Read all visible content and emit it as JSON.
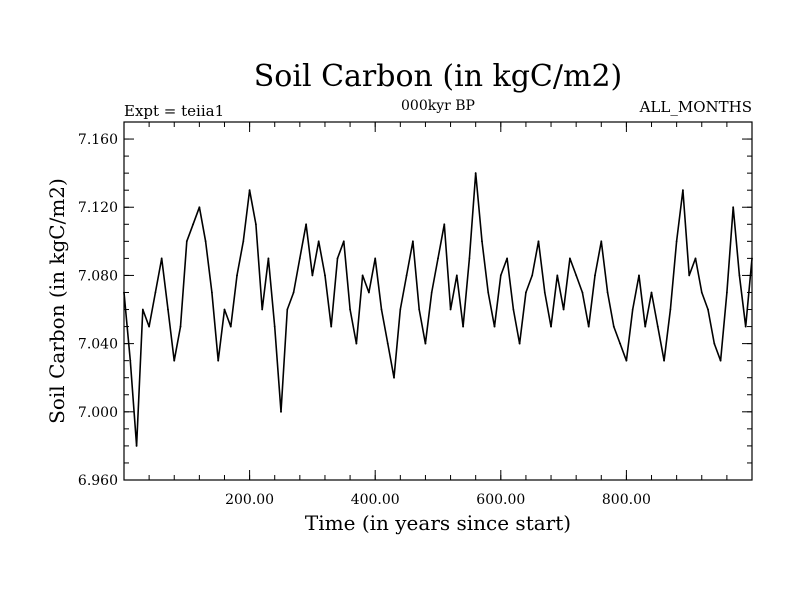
{
  "chart_data": {
    "type": "line",
    "title": "Soil Carbon (in kgC/m2)",
    "subtitle": "000kyr BP",
    "left_note": "Expt = teiia1",
    "right_note": "ALL_MONTHS",
    "xlabel": "Time (in years since start)",
    "ylabel": "Soil Carbon (in kgC/m2)",
    "xlim": [
      0,
      1000
    ],
    "ylim": [
      6.96,
      7.17
    ],
    "x_ticks": [
      200,
      400,
      600,
      800
    ],
    "x_tick_labels": [
      "200.00",
      "400.00",
      "600.00",
      "800.00"
    ],
    "y_ticks": [
      6.96,
      7.0,
      7.04,
      7.08,
      7.12,
      7.16
    ],
    "y_tick_labels": [
      "6.960",
      "7.000",
      "7.040",
      "7.080",
      "7.120",
      "7.160"
    ],
    "grid": false,
    "series": [
      {
        "x": [
          0,
          10,
          20,
          30,
          40,
          50,
          60,
          70,
          80,
          90,
          100,
          110,
          120,
          130,
          140,
          150,
          160,
          170,
          180,
          190,
          200,
          210,
          220,
          230,
          240,
          250,
          260,
          270,
          280,
          290,
          300,
          310,
          320,
          330,
          340,
          350,
          360,
          370,
          380,
          390,
          400,
          410,
          420,
          430,
          440,
          450,
          460,
          470,
          480,
          490,
          500,
          510,
          520,
          530,
          540,
          550,
          560,
          570,
          580,
          590,
          600,
          610,
          620,
          630,
          640,
          650,
          660,
          670,
          680,
          690,
          700,
          710,
          720,
          730,
          740,
          750,
          760,
          770,
          780,
          790,
          800,
          810,
          820,
          830,
          840,
          850,
          860,
          870,
          880,
          890,
          900,
          910,
          920,
          930,
          940,
          950,
          960,
          970,
          980,
          990,
          1000
        ],
        "y": [
          7.07,
          7.03,
          6.98,
          7.06,
          7.05,
          7.07,
          7.09,
          7.06,
          7.03,
          7.05,
          7.1,
          7.11,
          7.12,
          7.1,
          7.07,
          7.03,
          7.06,
          7.05,
          7.08,
          7.1,
          7.13,
          7.11,
          7.06,
          7.09,
          7.05,
          7.0,
          7.06,
          7.07,
          7.09,
          7.11,
          7.08,
          7.1,
          7.08,
          7.05,
          7.09,
          7.1,
          7.06,
          7.04,
          7.08,
          7.07,
          7.09,
          7.06,
          7.04,
          7.02,
          7.06,
          7.08,
          7.1,
          7.06,
          7.04,
          7.07,
          7.09,
          7.11,
          7.06,
          7.08,
          7.05,
          7.09,
          7.14,
          7.1,
          7.07,
          7.05,
          7.08,
          7.09,
          7.06,
          7.04,
          7.07,
          7.08,
          7.1,
          7.07,
          7.05,
          7.08,
          7.06,
          7.09,
          7.08,
          7.07,
          7.05,
          7.08,
          7.1,
          7.07,
          7.05,
          7.04,
          7.03,
          7.06,
          7.08,
          7.05,
          7.07,
          7.05,
          7.03,
          7.06,
          7.1,
          7.13,
          7.08,
          7.09,
          7.07,
          7.06,
          7.04,
          7.03,
          7.07,
          7.12,
          7.08,
          7.05,
          7.09
        ]
      }
    ]
  }
}
